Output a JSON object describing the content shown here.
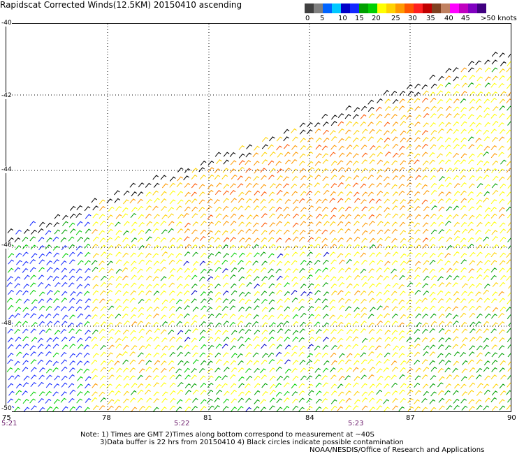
{
  "title": "Rapidscat Corrected Winds(12.5KM) 20150410 ascending",
  "legend": {
    "colors": [
      "#404040",
      "#808080",
      "#0064ff",
      "#00c8ff",
      "#0000c8",
      "#1428ff",
      "#00a000",
      "#00d000",
      "#ffff00",
      "#ffd200",
      "#ff9900",
      "#ff5500",
      "#ff2020",
      "#c00000",
      "#804020",
      "#c08060",
      "#ff00ff",
      "#c000c0",
      "#8000c0",
      "#400080"
    ],
    "labels": [
      "0",
      "5",
      "10",
      "15",
      "20",
      "25",
      "30",
      "35",
      "40",
      "45",
      ">50 knots"
    ]
  },
  "map": {
    "lon_labels": [
      "75",
      "78",
      "81",
      "84",
      "87",
      "90"
    ],
    "lat_labels": [
      "-40",
      "-42",
      "-44",
      "-46",
      "-48",
      "-50"
    ],
    "time_labels": [
      "5:21",
      "5:22",
      "5:23"
    ],
    "time_color": "#6b1a6b"
  },
  "notes": [
    "Note: 1) Times are GMT 2)Times along bottom correspond to measurement at ~40S",
    "3)Data buffer is 22 hrs from 20150410 4) Black circles indicate possible contamination",
    "NOAA/NESDIS/Office of Research and Applications"
  ]
}
